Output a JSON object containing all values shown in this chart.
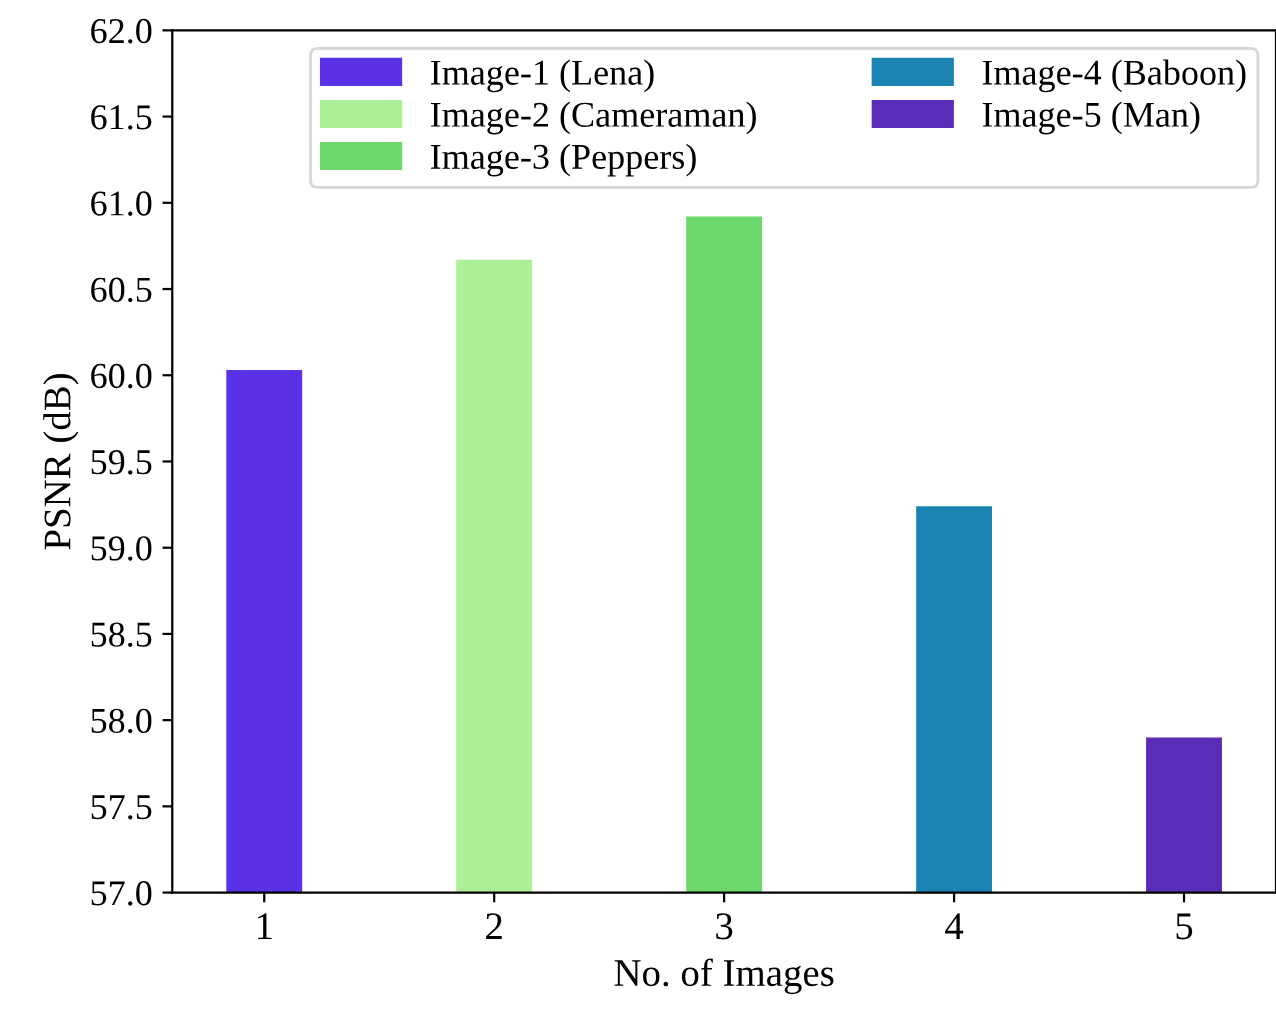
{
  "chart_data": {
    "type": "bar",
    "xlabel": "No. of Images",
    "ylabel": "PSNR (dB)",
    "categories": [
      "1",
      "2",
      "3",
      "4",
      "5"
    ],
    "series": [
      {
        "name": "Image-1 (Lena)",
        "color": "#5b31e6",
        "values": [
          60.03,
          null,
          null,
          null,
          null
        ]
      },
      {
        "name": "Image-2 (Cameraman)",
        "color": "#adef96",
        "values": [
          null,
          60.67,
          null,
          null,
          null
        ]
      },
      {
        "name": "Image-3 (Peppers)",
        "color": "#6bd86b",
        "values": [
          null,
          null,
          60.92,
          null,
          null
        ]
      },
      {
        "name": "Image-4 (Baboon)",
        "color": "#1c84b3",
        "values": [
          null,
          null,
          null,
          59.24,
          null
        ]
      },
      {
        "name": "Image-5 (Man)",
        "color": "#5a2cb8",
        "values": [
          null,
          null,
          null,
          null,
          57.9
        ]
      }
    ],
    "ylim": [
      57.0,
      62.0
    ],
    "yticks": [
      {
        "value": 57,
        "label": "57.0"
      },
      {
        "value": 57.5,
        "label": "57.5"
      },
      {
        "value": 58,
        "label": "58.0"
      },
      {
        "value": 58.5,
        "label": "58.5"
      },
      {
        "value": 59,
        "label": "59.0"
      },
      {
        "value": 59.5,
        "label": "59.5"
      },
      {
        "value": 60,
        "label": "60.0"
      },
      {
        "value": 60.5,
        "label": "60.5"
      },
      {
        "value": 61,
        "label": "61.0"
      },
      {
        "value": 61.5,
        "label": "61.5"
      },
      {
        "value": 62,
        "label": "62.0"
      }
    ],
    "grid": false,
    "legend": "top right"
  }
}
